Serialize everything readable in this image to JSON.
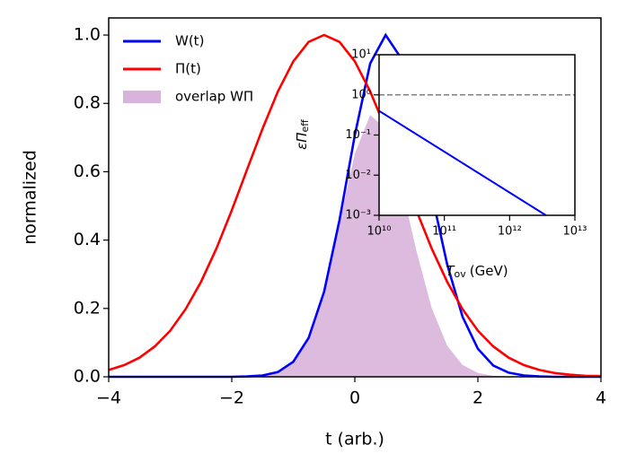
{
  "chart_data": [
    {
      "type": "line",
      "xlabel": "t (arb.)",
      "ylabel": "normalized",
      "xlim": [
        -4,
        4
      ],
      "ylim": [
        0,
        1.05
      ],
      "xticks": [
        {
          "value": -4,
          "label": "−4"
        },
        {
          "value": -2,
          "label": "−2"
        },
        0,
        2,
        4
      ],
      "yticks": [
        {
          "value": 0,
          "label": "0.0"
        },
        {
          "value": 0.2,
          "label": "0.2"
        },
        {
          "value": 0.4,
          "label": "0.4"
        },
        {
          "value": 0.6,
          "label": "0.6"
        },
        {
          "value": 0.8,
          "label": "0.8"
        },
        {
          "value": 1.0,
          "label": "1.0"
        }
      ],
      "legend": "upper left",
      "x": [
        -4,
        -3.75,
        -3.5,
        -3.25,
        -3,
        -2.75,
        -2.5,
        -2.25,
        -2,
        -1.75,
        -1.5,
        -1.25,
        -1,
        -0.75,
        -0.5,
        -0.25,
        0,
        0.25,
        0.5,
        0.75,
        1,
        1.25,
        1.5,
        1.75,
        2,
        2.25,
        2.5,
        2.75,
        3,
        3.25,
        3.5,
        3.75,
        4
      ],
      "series": [
        {
          "name": "W(t)",
          "color": "#0000ff",
          "kind": "line",
          "values": [
            0,
            0,
            0,
            0,
            0,
            0,
            0,
            0,
            0,
            0.001,
            0.004,
            0.014,
            0.044,
            0.114,
            0.249,
            0.458,
            0.707,
            0.917,
            1.0,
            0.933,
            0.757,
            0.535,
            0.329,
            0.176,
            0.082,
            0.033,
            0.012,
            0.004,
            0.001,
            0,
            0,
            0,
            0
          ]
        },
        {
          "name": "Π(t)",
          "color": "#ff0000",
          "kind": "line",
          "values": [
            0.02,
            0.034,
            0.056,
            0.089,
            0.135,
            0.198,
            0.278,
            0.375,
            0.487,
            0.607,
            0.726,
            0.835,
            0.923,
            0.98,
            1.0,
            0.98,
            0.923,
            0.835,
            0.726,
            0.607,
            0.487,
            0.375,
            0.278,
            0.198,
            0.135,
            0.089,
            0.056,
            0.034,
            0.02,
            0.011,
            0.006,
            0.003,
            0.002
          ]
        },
        {
          "name": "overlap WΠ",
          "color": "#d8b4dc",
          "kind": "area",
          "values": [
            0,
            0,
            0,
            0,
            0,
            0,
            0,
            0,
            0,
            0,
            0.003,
            0.012,
            0.041,
            0.112,
            0.249,
            0.449,
            0.653,
            0.766,
            0.726,
            0.566,
            0.369,
            0.201,
            0.091,
            0.035,
            0.011,
            0.003,
            0.001,
            0,
            0,
            0,
            0,
            0,
            0
          ]
        }
      ]
    },
    {
      "type": "line",
      "xlabel": "T",
      "xlabel_sub": "ov",
      "xlabel_unit": "(GeV)",
      "ylabel": "εΠ",
      "ylabel_sub": "eff",
      "xscale": "log",
      "yscale": "log",
      "xlim": [
        10000000000.0,
        10000000000000.0
      ],
      "ylim": [
        0.001,
        10
      ],
      "xticks": [
        {
          "value": 10000000000.0,
          "label": "10¹⁰"
        },
        {
          "value": 100000000000.0,
          "label": "10¹¹"
        },
        {
          "value": 1000000000000.0,
          "label": "10¹²"
        },
        {
          "value": 10000000000000.0,
          "label": "10¹³"
        }
      ],
      "yticks": [
        {
          "value": 0.001,
          "label": "10⁻³"
        },
        {
          "value": 0.01,
          "label": "10⁻²"
        },
        {
          "value": 0.1,
          "label": "10⁻¹"
        },
        {
          "value": 1,
          "label": "10⁰"
        },
        {
          "value": 10,
          "label": "10¹"
        }
      ],
      "hlines": [
        {
          "value": 1,
          "color": "#808080",
          "style": "dashed"
        }
      ],
      "x": [
        10000000000.0,
        3600000000000.0
      ],
      "series": [
        {
          "color": "#0000ff",
          "kind": "line",
          "values": [
            0.4,
            0.001
          ]
        }
      ]
    }
  ]
}
